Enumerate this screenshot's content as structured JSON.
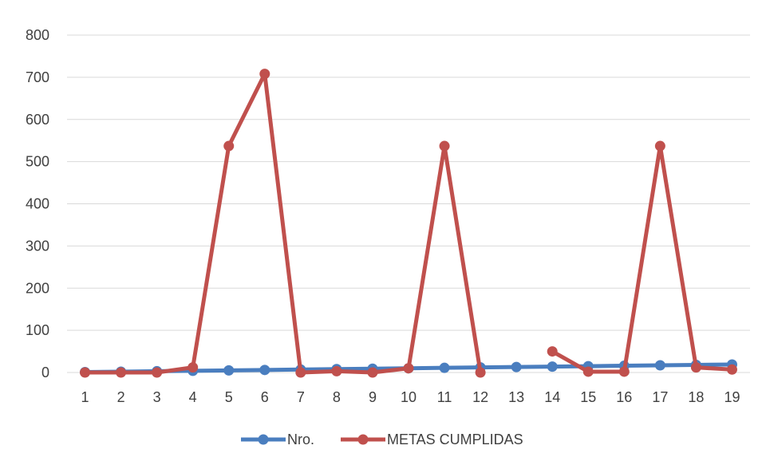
{
  "chart_data": {
    "type": "line",
    "title": "",
    "xlabel": "",
    "ylabel": "",
    "categories": [
      "1",
      "2",
      "3",
      "4",
      "5",
      "6",
      "7",
      "8",
      "9",
      "10",
      "11",
      "12",
      "13",
      "14",
      "15",
      "16",
      "17",
      "18",
      "19"
    ],
    "ylim": [
      0,
      800
    ],
    "yticks": [
      0,
      100,
      200,
      300,
      400,
      500,
      600,
      700,
      800
    ],
    "grid": true,
    "legend_position": "bottom",
    "series": [
      {
        "name": "Nro.",
        "color": "#4a7ebf",
        "values": [
          1,
          2,
          3,
          4,
          5,
          6,
          7,
          8,
          9,
          10,
          11,
          12,
          13,
          14,
          15,
          16,
          17,
          18,
          19
        ]
      },
      {
        "name": "METAS CUMPLIDAS",
        "color": "#c0504d",
        "values": [
          0,
          0,
          0,
          12,
          537,
          708,
          0,
          3,
          0,
          10,
          537,
          0,
          null,
          50,
          2,
          2,
          537,
          12,
          7
        ]
      }
    ]
  }
}
